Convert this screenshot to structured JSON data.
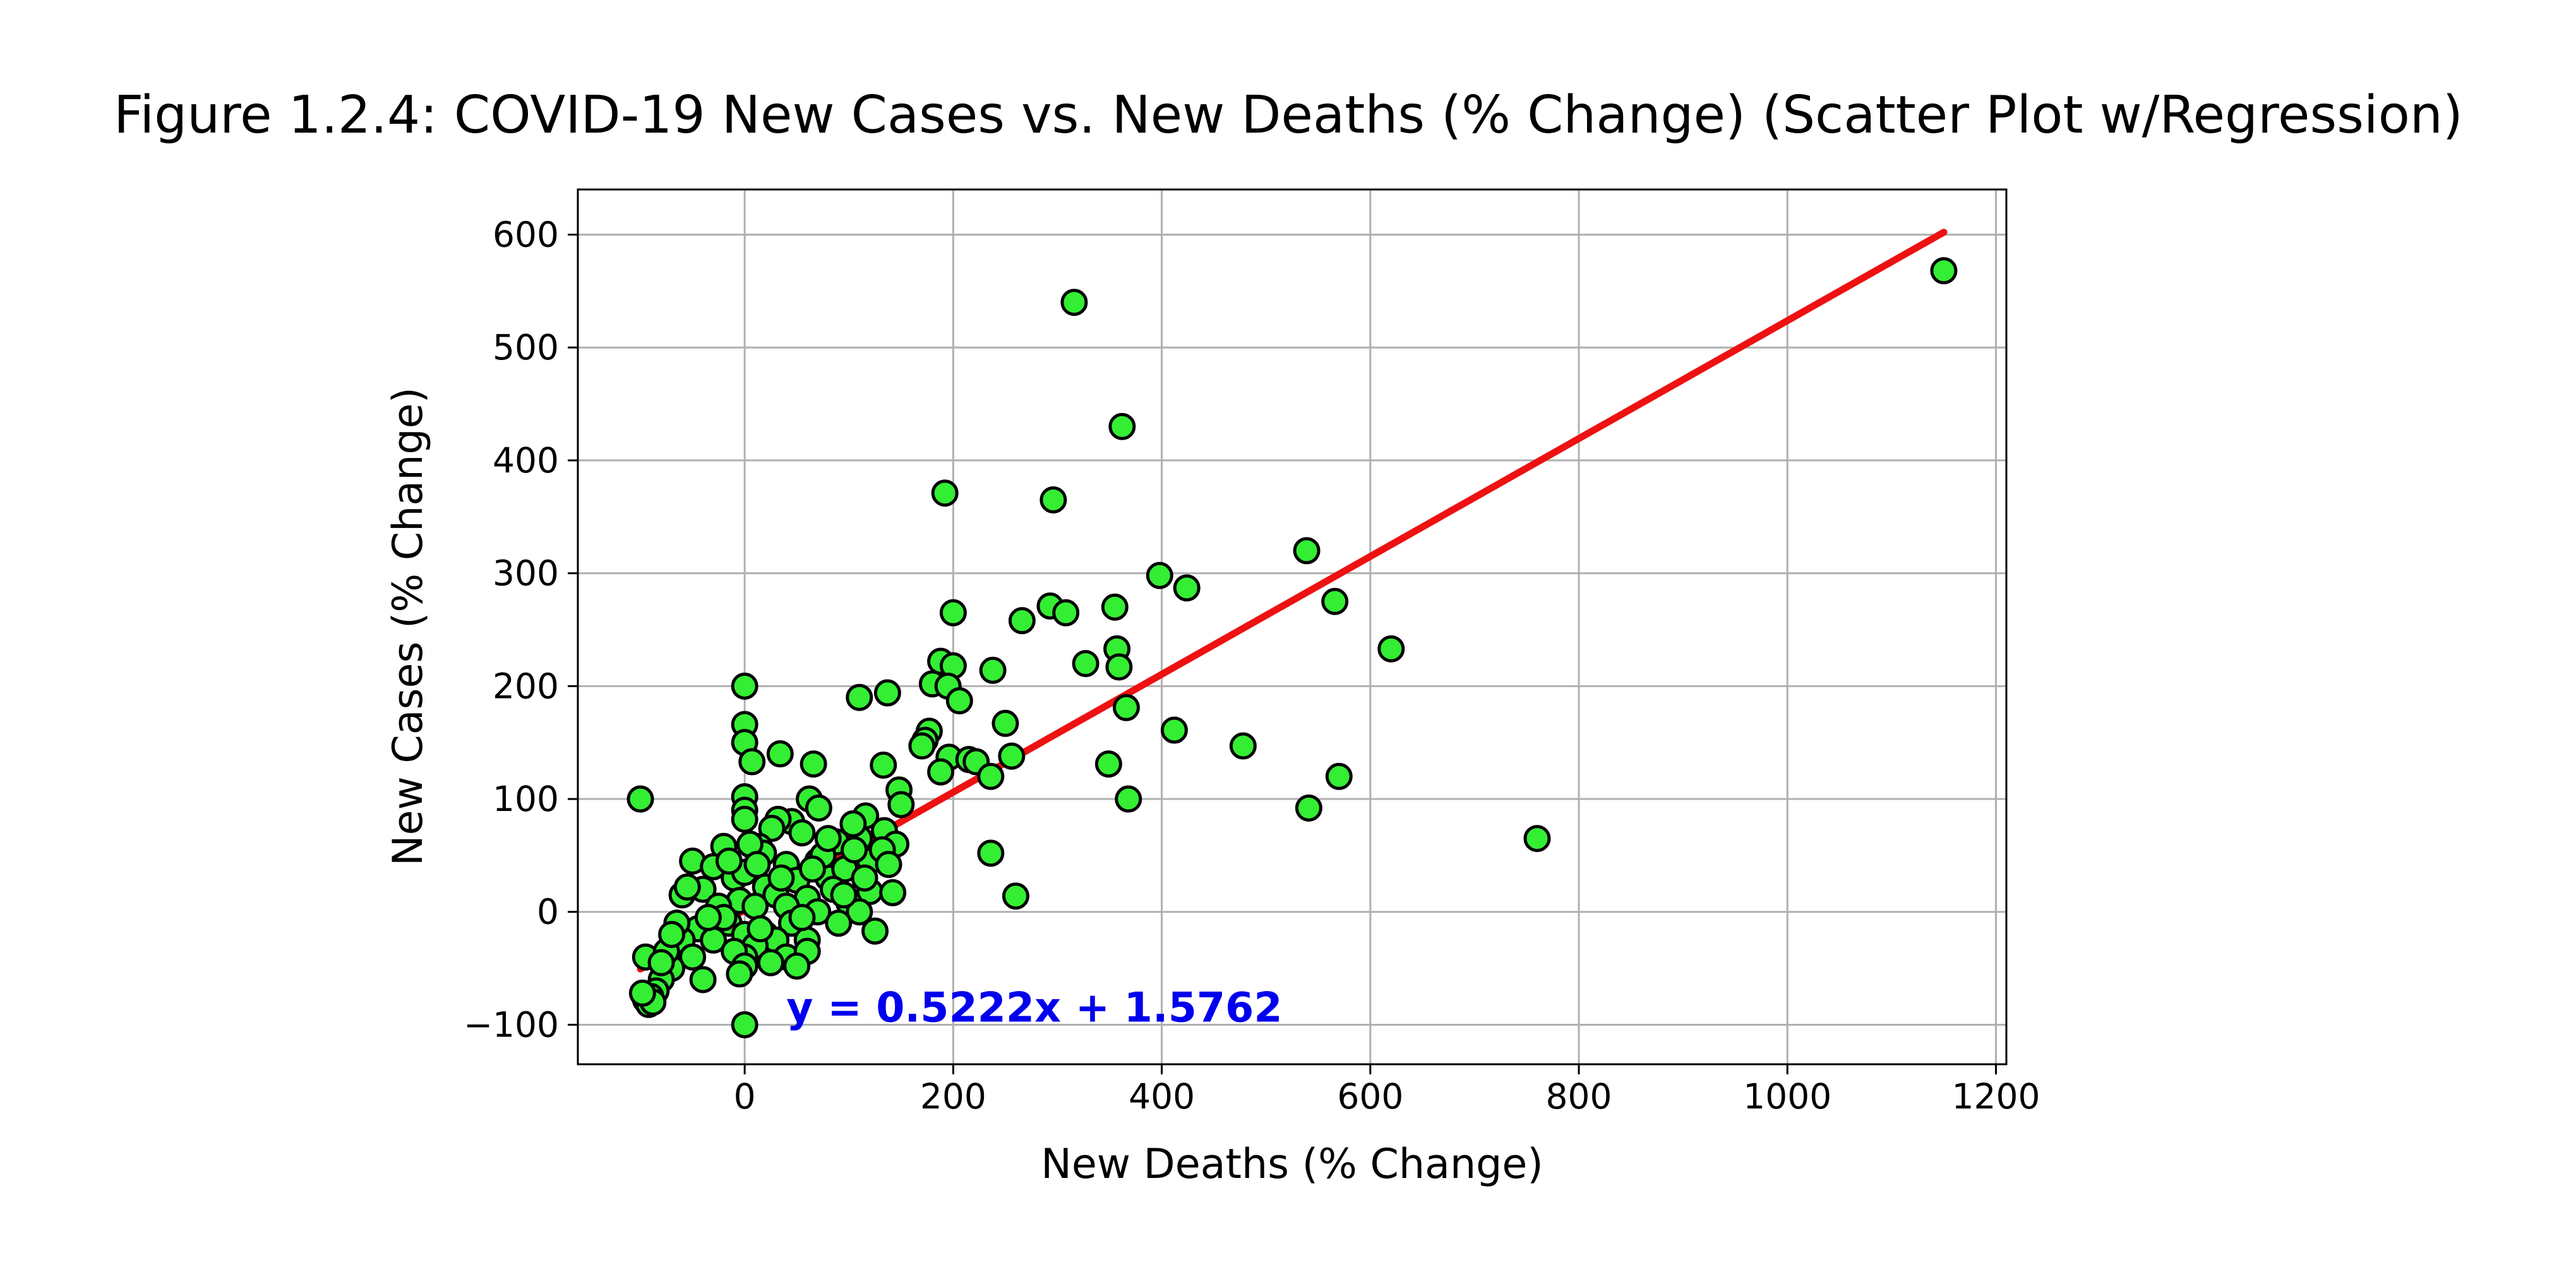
{
  "chart_data": {
    "type": "scatter",
    "title": "Figure 1.2.4: COVID-19 New Cases vs. New Deaths (% Change) (Scatter Plot w/Regression)",
    "xlabel": "New Deaths (% Change)",
    "ylabel": "New Cases (% Change)",
    "xlim": [
      -160,
      1210
    ],
    "ylim": [
      -135,
      640
    ],
    "xticks": [
      0,
      200,
      400,
      600,
      800,
      1000,
      1200
    ],
    "yticks": [
      -100,
      0,
      100,
      200,
      300,
      400,
      500,
      600
    ],
    "grid": true,
    "colors": {
      "points": "#33ee33",
      "point_edge": "#000000",
      "regression": "#ee1111",
      "equation": "#0000ee",
      "grid": "#b0b0b0"
    },
    "regression": {
      "slope": 0.5222,
      "intercept": 1.5762,
      "x_range": [
        -100,
        1150
      ],
      "equation_text": "y = 0.5222x + 1.5762",
      "equation_anchor": [
        40,
        -85
      ]
    },
    "points": [
      [
        1150,
        568
      ],
      [
        316,
        540
      ],
      [
        362,
        430
      ],
      [
        192,
        371
      ],
      [
        296,
        365
      ],
      [
        539,
        320
      ],
      [
        398,
        298
      ],
      [
        424,
        287
      ],
      [
        293,
        271
      ],
      [
        355,
        270
      ],
      [
        566,
        275
      ],
      [
        200,
        265
      ],
      [
        266,
        258
      ],
      [
        308,
        265
      ],
      [
        620,
        233
      ],
      [
        357,
        233
      ],
      [
        327,
        220
      ],
      [
        359,
        217
      ],
      [
        188,
        222
      ],
      [
        200,
        218
      ],
      [
        238,
        214
      ],
      [
        180,
        202
      ],
      [
        195,
        200
      ],
      [
        0,
        200
      ],
      [
        137,
        194
      ],
      [
        110,
        190
      ],
      [
        206,
        187
      ],
      [
        366,
        181
      ],
      [
        0,
        166
      ],
      [
        250,
        167
      ],
      [
        412,
        161
      ],
      [
        177,
        160
      ],
      [
        173,
        152
      ],
      [
        0,
        150
      ],
      [
        478,
        147
      ],
      [
        170,
        147
      ],
      [
        34,
        140
      ],
      [
        196,
        137
      ],
      [
        215,
        135
      ],
      [
        222,
        133
      ],
      [
        256,
        138
      ],
      [
        7,
        133
      ],
      [
        66,
        131
      ],
      [
        349,
        131
      ],
      [
        133,
        130
      ],
      [
        188,
        124
      ],
      [
        236,
        120
      ],
      [
        570,
        120
      ],
      [
        148,
        108
      ],
      [
        150,
        95
      ],
      [
        -100,
        100
      ],
      [
        0,
        102
      ],
      [
        368,
        100
      ],
      [
        541,
        92
      ],
      [
        0,
        90
      ],
      [
        0,
        82
      ],
      [
        116,
        85
      ],
      [
        134,
        72
      ],
      [
        110,
        65
      ],
      [
        145,
        60
      ],
      [
        62,
        100
      ],
      [
        71,
        92
      ],
      [
        45,
        80
      ],
      [
        32,
        82
      ],
      [
        104,
        78
      ],
      [
        26,
        74
      ],
      [
        55,
        70
      ],
      [
        88,
        62
      ],
      [
        120,
        45
      ],
      [
        760,
        65
      ],
      [
        132,
        55
      ],
      [
        14,
        58
      ],
      [
        -20,
        58
      ],
      [
        -50,
        45
      ],
      [
        -30,
        40
      ],
      [
        40,
        42
      ],
      [
        70,
        45
      ],
      [
        18,
        52
      ],
      [
        80,
        30
      ],
      [
        -10,
        30
      ],
      [
        96,
        38
      ],
      [
        138,
        42
      ],
      [
        120,
        18
      ],
      [
        142,
        17
      ],
      [
        50,
        28
      ],
      [
        20,
        22
      ],
      [
        0,
        35
      ],
      [
        -40,
        20
      ],
      [
        -60,
        15
      ],
      [
        -5,
        10
      ],
      [
        30,
        15
      ],
      [
        60,
        12
      ],
      [
        100,
        8
      ],
      [
        236,
        52
      ],
      [
        260,
        14
      ],
      [
        -55,
        22
      ],
      [
        10,
        5
      ],
      [
        40,
        5
      ],
      [
        70,
        0
      ],
      [
        110,
        0
      ],
      [
        -25,
        5
      ],
      [
        90,
        -10
      ],
      [
        125,
        -17
      ],
      [
        45,
        -10
      ],
      [
        -15,
        -10
      ],
      [
        20,
        -20
      ],
      [
        0,
        -20
      ],
      [
        -45,
        -15
      ],
      [
        60,
        -25
      ],
      [
        -30,
        -25
      ],
      [
        30,
        -25
      ],
      [
        10,
        -30
      ],
      [
        -60,
        -25
      ],
      [
        0,
        -40
      ],
      [
        -10,
        -35
      ],
      [
        40,
        -40
      ],
      [
        -50,
        -40
      ],
      [
        60,
        -35
      ],
      [
        25,
        -45
      ],
      [
        50,
        -48
      ],
      [
        0,
        -48
      ],
      [
        -40,
        -60
      ],
      [
        -70,
        -50
      ],
      [
        -80,
        -60
      ],
      [
        -95,
        -40
      ],
      [
        -75,
        -35
      ],
      [
        -85,
        -70
      ],
      [
        -90,
        -75
      ],
      [
        -95,
        -78
      ],
      [
        -92,
        -82
      ],
      [
        -88,
        -80
      ],
      [
        -98,
        -72
      ],
      [
        0,
        -100
      ],
      [
        15,
        -15
      ],
      [
        -20,
        -5
      ],
      [
        85,
        20
      ],
      [
        105,
        55
      ],
      [
        75,
        50
      ],
      [
        65,
        38
      ],
      [
        35,
        30
      ],
      [
        -35,
        -5
      ],
      [
        -65,
        -10
      ],
      [
        55,
        -5
      ],
      [
        -15,
        45
      ],
      [
        5,
        60
      ],
      [
        95,
        15
      ],
      [
        115,
        30
      ],
      [
        12,
        42
      ],
      [
        -5,
        -55
      ],
      [
        80,
        65
      ],
      [
        -70,
        -20
      ],
      [
        -80,
        -45
      ]
    ]
  }
}
